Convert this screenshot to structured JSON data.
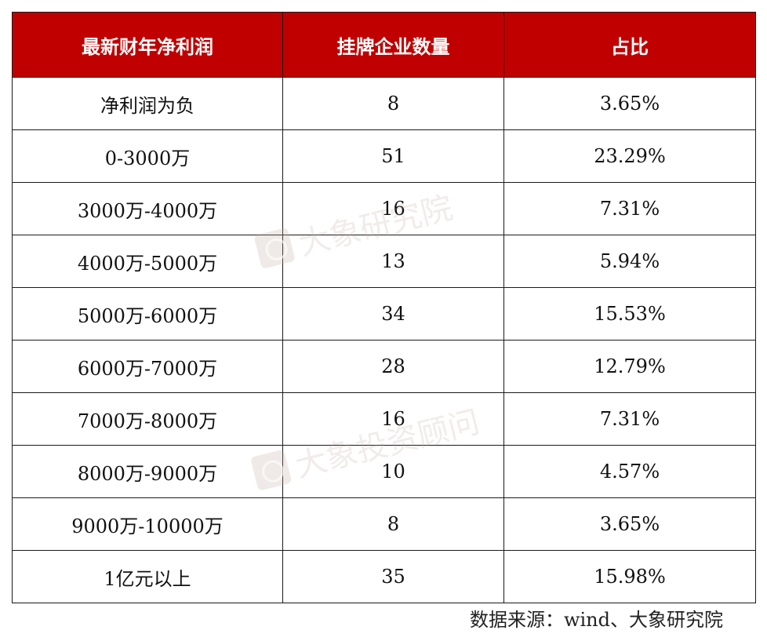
{
  "table": {
    "headers": [
      "最新财年净利润",
      "挂牌企业数量",
      "占比"
    ],
    "rows": [
      [
        "净利润为负",
        "8",
        "3.65%"
      ],
      [
        "0-3000万",
        "51",
        "23.29%"
      ],
      [
        "3000万-4000万",
        "16",
        "7.31%"
      ],
      [
        "4000万-5000万",
        "13",
        "5.94%"
      ],
      [
        "5000万-6000万",
        "34",
        "15.53%"
      ],
      [
        "6000万-7000万",
        "28",
        "12.79%"
      ],
      [
        "7000万-8000万",
        "16",
        "7.31%"
      ],
      [
        "8000万-9000万",
        "10",
        "4.57%"
      ],
      [
        "9000万-10000万",
        "8",
        "3.65%"
      ],
      [
        "1亿元以上",
        "35",
        "15.98%"
      ]
    ]
  },
  "watermarks": [
    "大象研究院",
    "大象投资顾问"
  ],
  "source": "数据来源：wind、大象研究院",
  "colors": {
    "header_bg": "#c00000",
    "header_text": "#ffffff",
    "border": "#1a1a1a"
  }
}
